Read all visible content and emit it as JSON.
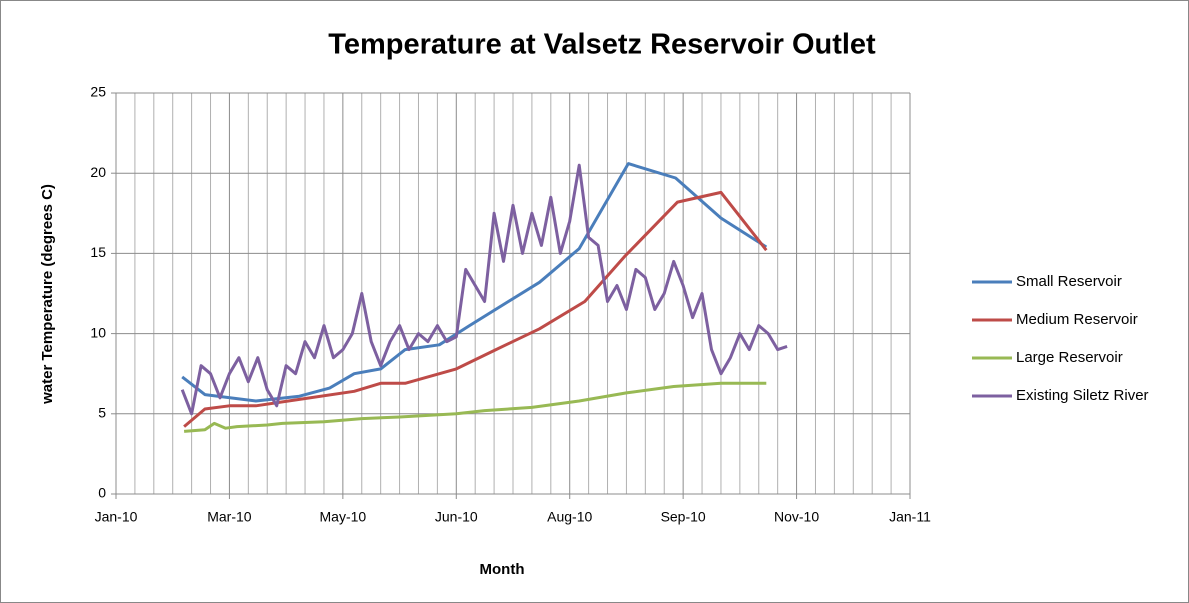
{
  "chart_data": {
    "type": "line",
    "title": "Temperature at Valsetz Reservoir Outlet",
    "x_label": "Month",
    "y_label": "water Temperature (degrees C)",
    "xlim": [
      0,
      420
    ],
    "xticks": [
      {
        "value": 0,
        "label": "Jan-10"
      },
      {
        "value": 60,
        "label": "Mar-10"
      },
      {
        "value": 120,
        "label": "May-10"
      },
      {
        "value": 180,
        "label": "Jun-10"
      },
      {
        "value": 240,
        "label": "Aug-10"
      },
      {
        "value": 300,
        "label": "Sep-10"
      },
      {
        "value": 360,
        "label": "Nov-10"
      },
      {
        "value": 420,
        "label": "Jan-11"
      }
    ],
    "ylim": [
      0,
      25
    ],
    "yticks": [
      0,
      5,
      10,
      15,
      20,
      25
    ],
    "grid": true,
    "legend": "right",
    "series": [
      {
        "name": "Small Reservoir",
        "color": "#4a7ebb",
        "x": [
          35,
          47,
          74,
          97,
          113,
          126,
          140,
          153,
          171,
          187,
          224,
          245,
          271,
          296,
          320,
          344
        ],
        "values": [
          7.3,
          6.2,
          5.8,
          6.1,
          6.6,
          7.5,
          7.8,
          9.0,
          9.3,
          10.5,
          13.2,
          15.3,
          20.6,
          19.7,
          17.2,
          15.4
        ]
      },
      {
        "name": "Medium Reservoir",
        "color": "#be4b48",
        "x": [
          36,
          47,
          60,
          74,
          97,
          126,
          140,
          153,
          180,
          201,
          224,
          248,
          269,
          297,
          320,
          344
        ],
        "values": [
          4.2,
          5.3,
          5.5,
          5.5,
          5.9,
          6.4,
          6.9,
          6.9,
          7.8,
          9.0,
          10.3,
          12.0,
          14.8,
          18.2,
          18.8,
          15.2
        ]
      },
      {
        "name": "Large Reservoir",
        "color": "#98b954",
        "x": [
          36,
          47,
          52,
          58,
          64,
          80,
          88,
          110,
          130,
          150,
          180,
          195,
          220,
          245,
          270,
          295,
          320,
          344
        ],
        "values": [
          3.9,
          4.0,
          4.4,
          4.1,
          4.2,
          4.3,
          4.4,
          4.5,
          4.7,
          4.8,
          5.0,
          5.2,
          5.4,
          5.8,
          6.3,
          6.7,
          6.9,
          6.9
        ]
      },
      {
        "name": "Existing Siletz River",
        "color": "#7d60a0",
        "x": [
          35,
          40,
          45,
          50,
          55,
          60,
          65,
          70,
          75,
          80,
          85,
          90,
          95,
          100,
          105,
          110,
          115,
          120,
          125,
          130,
          135,
          140,
          145,
          150,
          155,
          160,
          165,
          170,
          175,
          180,
          185,
          190,
          195,
          200,
          205,
          210,
          215,
          220,
          225,
          230,
          235,
          240,
          245,
          250,
          255,
          260,
          265,
          270,
          275,
          280,
          285,
          290,
          295,
          300,
          305,
          310,
          315,
          320,
          325,
          330,
          335,
          340,
          345,
          350,
          355
        ],
        "values": [
          6.5,
          5.0,
          8.0,
          7.5,
          6.0,
          7.5,
          8.5,
          7.0,
          8.5,
          6.5,
          5.5,
          8.0,
          7.5,
          9.5,
          8.5,
          10.5,
          8.5,
          9.0,
          10.0,
          12.5,
          9.5,
          8.0,
          9.5,
          10.5,
          9.0,
          10.0,
          9.5,
          10.5,
          9.5,
          9.8,
          14.0,
          13.0,
          12.0,
          17.5,
          14.5,
          18.0,
          15.0,
          17.5,
          15.5,
          18.5,
          15.0,
          17.0,
          20.5,
          16.0,
          15.5,
          12.0,
          13.0,
          11.5,
          14.0,
          13.5,
          11.5,
          12.5,
          14.5,
          13.0,
          11.0,
          12.5,
          9.0,
          7.5,
          8.5,
          10.0,
          9.0,
          10.5,
          10.0,
          9.0,
          9.2
        ]
      }
    ]
  }
}
